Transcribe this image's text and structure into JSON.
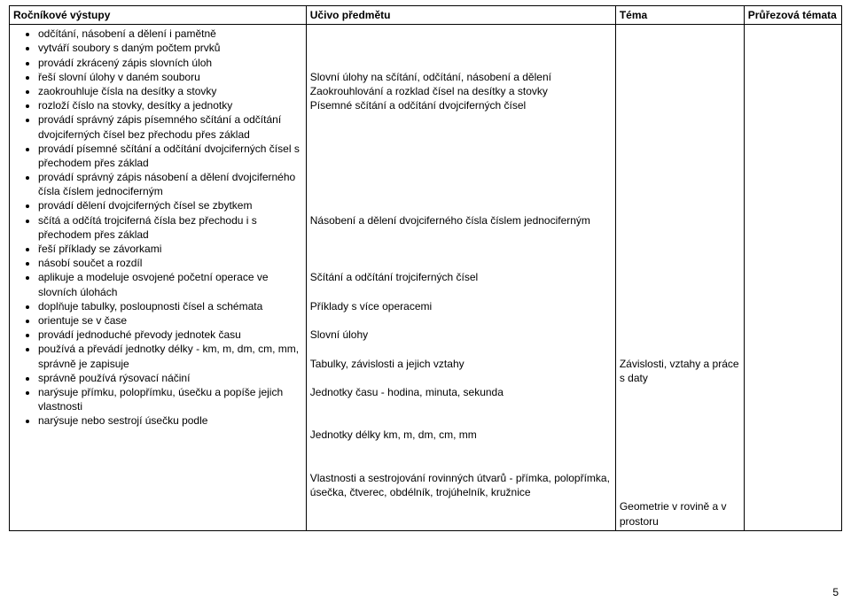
{
  "headers": {
    "col1": "Ročníkové výstupy",
    "col2": "Učivo předmětu",
    "col3": "Téma",
    "col4": "Průřezová témata"
  },
  "col1_bullets": [
    "odčítání, násobení a dělení i pamětně",
    "vytváří soubory s daným počtem prvků",
    "provádí zkrácený zápis slovních úloh",
    "řeší slovní úlohy v daném souboru",
    "zaokrouhluje čísla na desítky a stovky",
    "rozloží číslo na stovky, desítky a jednotky",
    "provádí správný zápis písemného sčítání a odčítání dvojciferných čísel bez přechodu přes základ",
    "provádí písemné sčítání a odčítání dvojciferných čísel s přechodem přes základ",
    "provádí správný zápis násobení a dělení dvojciferného čísla číslem jednociferným",
    "provádí dělení dvojciferných čísel se zbytkem",
    "sčítá a odčítá trojciferná čísla bez přechodu i s přechodem přes základ",
    "řeší příklady se závorkami",
    "násobí součet a rozdíl",
    "aplikuje a modeluje osvojené početní operace ve slovních úlohách",
    "doplňuje tabulky, posloupnosti čísel a schémata",
    "orientuje se v čase",
    "provádí jednoduché převody jednotek času",
    "používá a převádí jednotky délky - km, m, dm, cm, mm, správně je zapisuje",
    "správně používá rýsovací náčiní",
    "narýsuje přímku, polopřímku, úsečku a popíše jejich vlastnosti",
    "narýsuje nebo sestrojí úsečku podle"
  ],
  "col2_lines": [
    "",
    "",
    "",
    "Slovní úlohy na sčítání, odčítání, násobení a dělení",
    "Zaokrouhlování a rozklad čísel na desítky a stovky",
    "Písemné sčítání a odčítání dvojciferných čísel",
    "",
    "",
    "",
    "",
    "",
    "",
    "",
    "Násobení a dělení dvojciferného čísla číslem jednociferným",
    "",
    "",
    "",
    "Sčítání a odčítání trojciferných čísel",
    "",
    "Příklady s více operacemi",
    "",
    "Slovní úlohy",
    "",
    "Tabulky, závislosti a jejich vztahy",
    "",
    "Jednotky času - hodina, minuta, sekunda",
    "",
    "",
    "Jednotky délky km, m, dm, cm, mm",
    "",
    "",
    "Vlastnosti a sestrojování rovinných útvarů - přímka, polopřímka, úsečka, čtverec, obdélník, trojúhelník, kružnice"
  ],
  "col3_lines": [
    "",
    "",
    "",
    "",
    "",
    "",
    "",
    "",
    "",
    "",
    "",
    "",
    "",
    "",
    "",
    "",
    "",
    "",
    "",
    "",
    "",
    "",
    "",
    "Závislosti, vztahy a práce s daty",
    "",
    "",
    "",
    "",
    "",
    "",
    "",
    "",
    "Geometrie v rovině a v prostoru"
  ],
  "page_number": "5"
}
